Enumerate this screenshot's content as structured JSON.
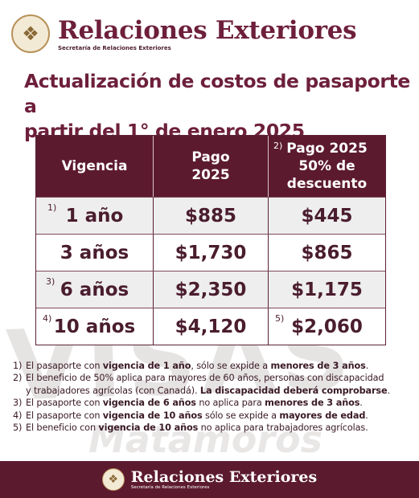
{
  "header": {
    "seal_icon": "eagle-seal-icon",
    "title": "Relaciones Exteriores",
    "subtitle": "Secretaría de Relaciones Exteriores"
  },
  "headline": {
    "line1": "Actualización de costos de pasaporte a",
    "line2": "partir del 1° de enero 2025"
  },
  "watermark": {
    "main": "VISAS",
    "sub": "Matamoros"
  },
  "table": {
    "headers": {
      "vigencia": "Vigencia",
      "pago": "Pago 2025",
      "pago_line1": "Pago",
      "pago_line2": "2025",
      "desc_sup": "2)",
      "desc_line1": "Pago 2025",
      "desc_line2": "50% de",
      "desc_line3": "descuento"
    },
    "rows": [
      {
        "sup": "1)",
        "vigencia": "1 año",
        "pago": "$885",
        "desc_sup": "",
        "descuento": "$445"
      },
      {
        "sup": "",
        "vigencia": "3 años",
        "pago": "$1,730",
        "desc_sup": "",
        "descuento": "$865"
      },
      {
        "sup": "3)",
        "vigencia": "6 años",
        "pago": "$2,350",
        "desc_sup": "",
        "descuento": "$1,175"
      },
      {
        "sup": "4)",
        "vigencia": "10 años",
        "pago": "$4,120",
        "desc_sup": "5)",
        "descuento": "$2,060"
      }
    ]
  },
  "notes": [
    {
      "num": "1)",
      "a": "El pasaporte con ",
      "b": "vigencia de 1 año",
      "c": ", sólo se expide a ",
      "d": "menores de 3 años",
      "e": "."
    },
    {
      "num": "2)",
      "a": "El beneficio de 50% aplica para mayores de 60 años, personas con discapacidad",
      "b": "",
      "c": "",
      "d": "",
      "e": ""
    },
    {
      "num": "",
      "a": "y trabajadores agrícolas (con Canadá). ",
      "b": "La discapacidad deberá comprobarse",
      "c": ".",
      "d": "",
      "e": ""
    },
    {
      "num": "3)",
      "a": "El pasaporte con ",
      "b": "vigencia de 6 años",
      "c": " no aplica para ",
      "d": "menores de 3 años",
      "e": "."
    },
    {
      "num": "4)",
      "a": "El pasaporte con ",
      "b": "vigencia de 10 años",
      "c": " sólo se expide a ",
      "d": "mayores de edad",
      "e": "."
    },
    {
      "num": "5)",
      "a": "El beneficio con ",
      "b": "vigencia de 10 años",
      "c": " no aplica para trabajadores agrícolas.",
      "d": "",
      "e": ""
    }
  ],
  "footer": {
    "seal_icon": "eagle-seal-icon",
    "title": "Relaciones Exteriores",
    "subtitle": "Secretaría de Relaciones Exteriores"
  },
  "colors": {
    "brand": "#6d1f3b",
    "header_bg": "#5c1a2f"
  }
}
